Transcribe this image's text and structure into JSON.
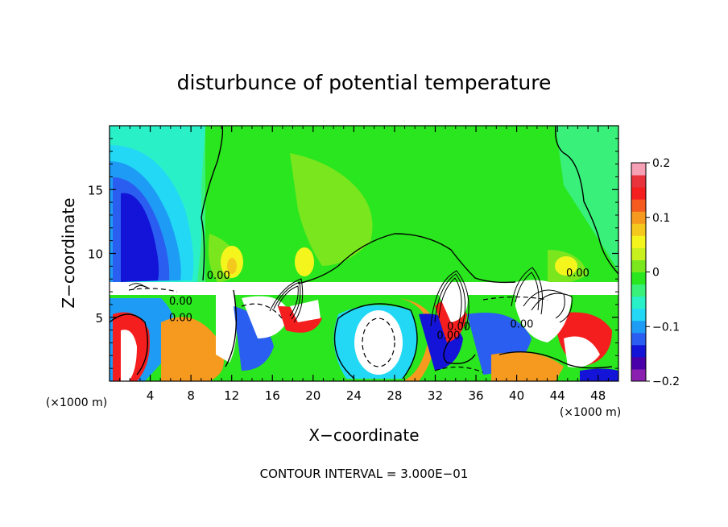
{
  "chart_data": {
    "type": "heatmap",
    "title": "disturbunce of potential temperature",
    "xlabel": "X−coordinate",
    "ylabel": "Z−coordinate",
    "x_unit_left": "(×1000 m)",
    "x_unit_right": "(×1000 m)",
    "x_ticks": [
      4,
      8,
      12,
      16,
      20,
      24,
      28,
      32,
      36,
      40,
      44,
      48
    ],
    "y_ticks": [
      5,
      10,
      15
    ],
    "xlim": [
      0,
      50
    ],
    "ylim": [
      0,
      20
    ],
    "contour_interval_text": "CONTOUR INTERVAL = 3.000E−01",
    "contour_labels": [
      {
        "text": "0.00",
        "x": 10.7,
        "y": 8.0
      },
      {
        "text": "0.00",
        "x": 7.0,
        "y": 6.0
      },
      {
        "text": "0.00",
        "x": 7.0,
        "y": 4.7
      },
      {
        "text": "0.00",
        "x": 34.3,
        "y": 4.0
      },
      {
        "text": "0.00",
        "x": 33.3,
        "y": 3.3
      },
      {
        "text": "0.00",
        "x": 40.5,
        "y": 4.2
      },
      {
        "text": "0.00",
        "x": 46.0,
        "y": 8.2
      }
    ],
    "colorbar": {
      "ticks": [
        0.2,
        0.1,
        0,
        -0.1,
        -0.2
      ],
      "tick_labels": [
        "0.2",
        "0.1",
        "0",
        "−0.1",
        "−0.2"
      ],
      "range": [
        -0.2,
        0.2
      ],
      "colors": [
        "#8b1fb0",
        "#4a00a8",
        "#1414d8",
        "#2a5ef0",
        "#1e9cf5",
        "#22d8f5",
        "#2af0c8",
        "#38f07a",
        "#2ae61e",
        "#7ae61e",
        "#c8f01e",
        "#f5f51e",
        "#f5c81e",
        "#f59a1e",
        "#f55a1e",
        "#f51e1e",
        "#e8323c",
        "#f5a0b4"
      ]
    },
    "regions": {
      "upper_field_value": 0.02,
      "upper_left_min": -0.17,
      "lower_layer_note": "strong positive and negative anomalies below z=7"
    }
  }
}
